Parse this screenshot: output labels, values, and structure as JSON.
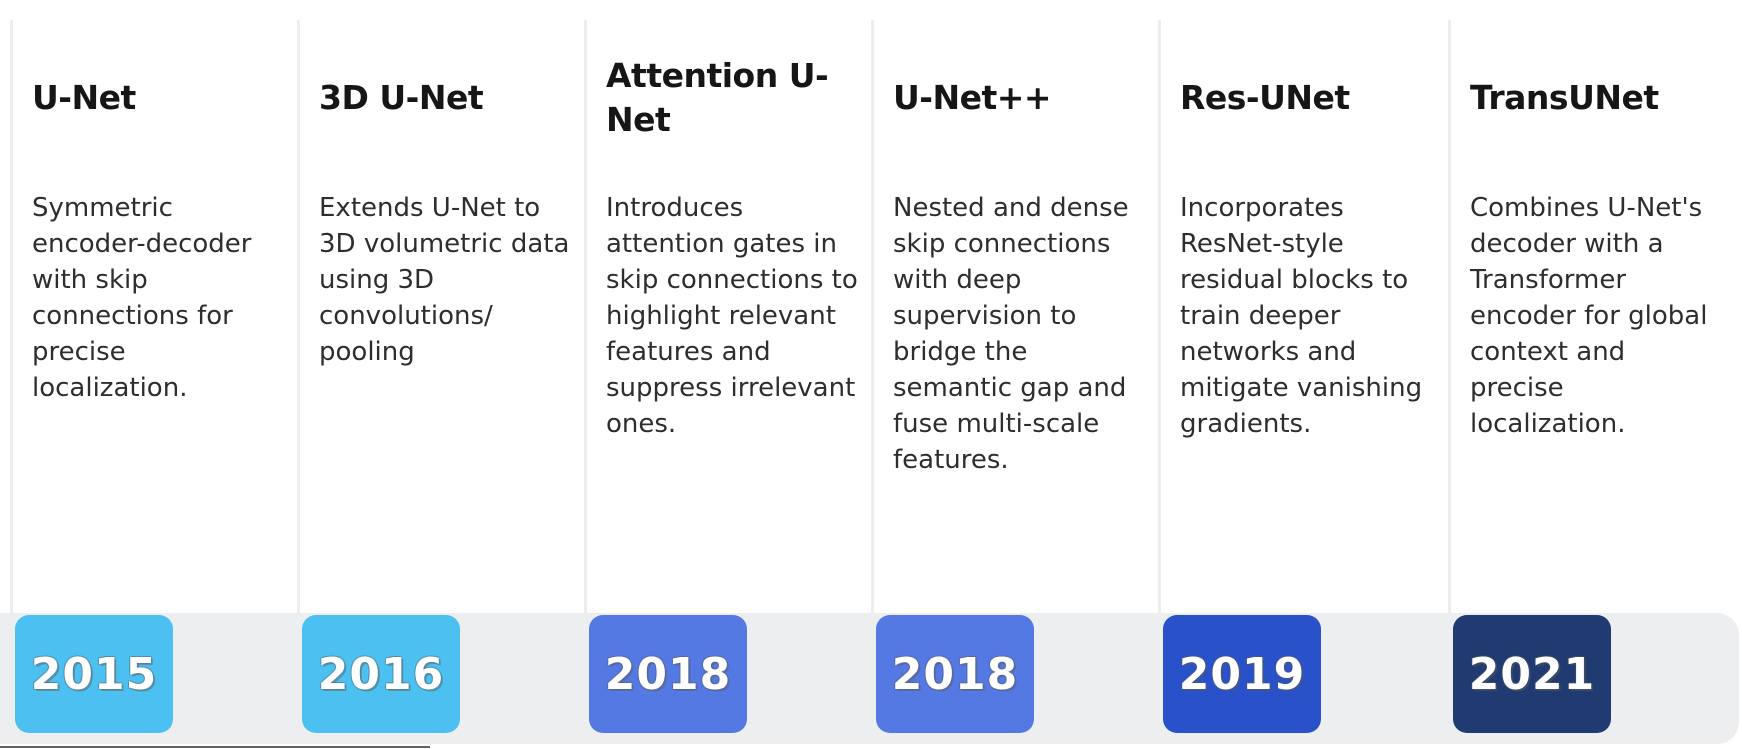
{
  "timeline": {
    "strip_color": "#EDEEF0",
    "divider_color": "#EDEDED",
    "title_color": "#161616",
    "description_color": "#2E2E2E",
    "year_text_color": "#FFFFFF",
    "columns": [
      {
        "title": "U-Net",
        "description": "Symmetric encoder-decoder with skip connections for precise localization.",
        "year": "2015",
        "badge_color": "#4CC1F1"
      },
      {
        "title": "3D U-Net",
        "description": "Extends U-Net to 3D volumetric data using 3D convolutions/ pooling",
        "year": "2016",
        "badge_color": "#4CC1F1"
      },
      {
        "title": "Attention U-Net",
        "description": "Introduces attention gates in skip connections to highlight relevant features and suppress irrelevant ones.",
        "year": "2018",
        "badge_color": "#5479E3"
      },
      {
        "title": "U-Net++",
        "description": "Nested and dense skip connections with deep supervision to bridge the semantic gap and fuse multi-scale features.",
        "year": "2018",
        "badge_color": "#5479E3"
      },
      {
        "title": "Res-UNet",
        "description": "Incorporates ResNet-style residual blocks to train deeper networks and mitigate vanishing gradients.",
        "year": "2019",
        "badge_color": "#2951C9"
      },
      {
        "title": "TransUNet",
        "description": "Combines U-Net's decoder with a Transformer encoder for global context and precise localization.",
        "year": "2021",
        "badge_color": "#203A72"
      }
    ]
  }
}
